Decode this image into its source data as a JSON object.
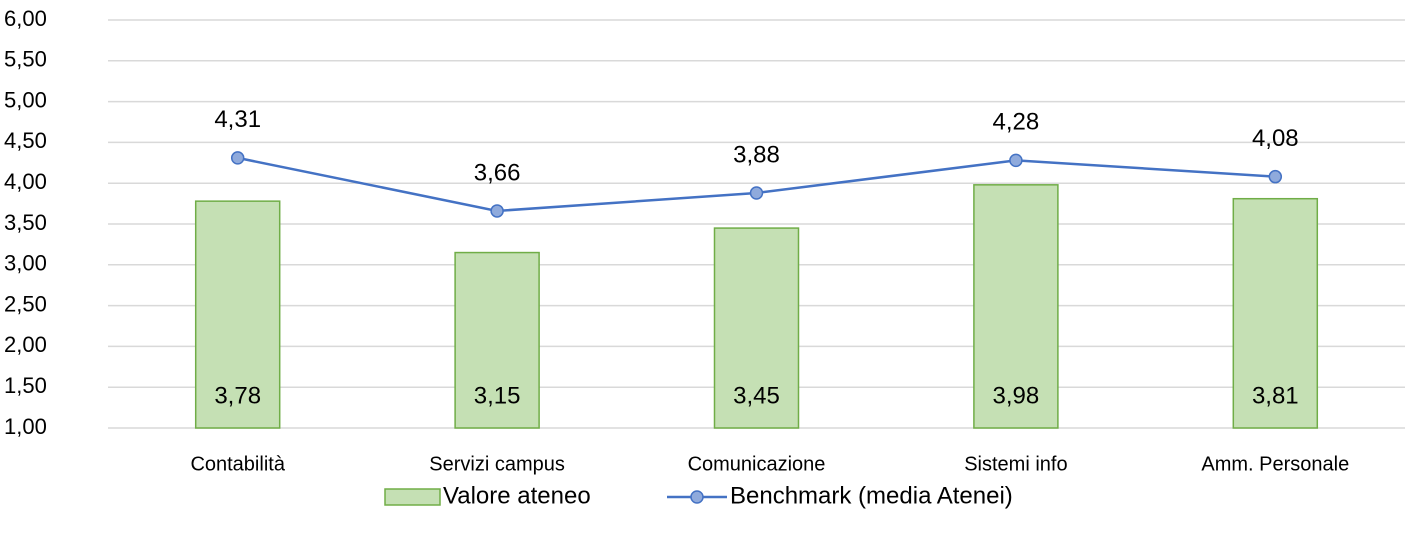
{
  "chart_data": {
    "type": "combo",
    "categories": [
      "Contabilità",
      "Servizi campus",
      "Comunicazione",
      "Sistemi info",
      "Amm. Personale"
    ],
    "series": [
      {
        "name": "Valore ateneo",
        "type": "bar",
        "color": "#c5e0b4",
        "edge_color": "#70ad47",
        "values": [
          3.78,
          3.15,
          3.45,
          3.98,
          3.81
        ],
        "value_labels": [
          "3,78",
          "3,15",
          "3,45",
          "3,98",
          "3,81"
        ]
      },
      {
        "name": "Benchmark (media Atenei)",
        "type": "line",
        "color": "#4472c4",
        "marker_color": "#8faadc",
        "values": [
          4.31,
          3.66,
          3.88,
          4.28,
          4.08
        ],
        "value_labels": [
          "4,31",
          "3,66",
          "3,88",
          "4,28",
          "4,08"
        ]
      }
    ],
    "ylim": [
      1,
      6
    ],
    "yticks": [
      {
        "value": 1,
        "label": "1,00"
      },
      {
        "value": 1.5,
        "label": "1,50"
      },
      {
        "value": 2,
        "label": "2,00"
      },
      {
        "value": 2.5,
        "label": "2,50"
      },
      {
        "value": 3,
        "label": "3,00"
      },
      {
        "value": 3.5,
        "label": "3,50"
      },
      {
        "value": 4,
        "label": "4,00"
      },
      {
        "value": 4.5,
        "label": "4,50"
      },
      {
        "value": 5,
        "label": "5,00"
      },
      {
        "value": 5.5,
        "label": "5,50"
      },
      {
        "value": 6,
        "label": "6,00"
      }
    ],
    "grid": true,
    "legend": "bottom"
  }
}
